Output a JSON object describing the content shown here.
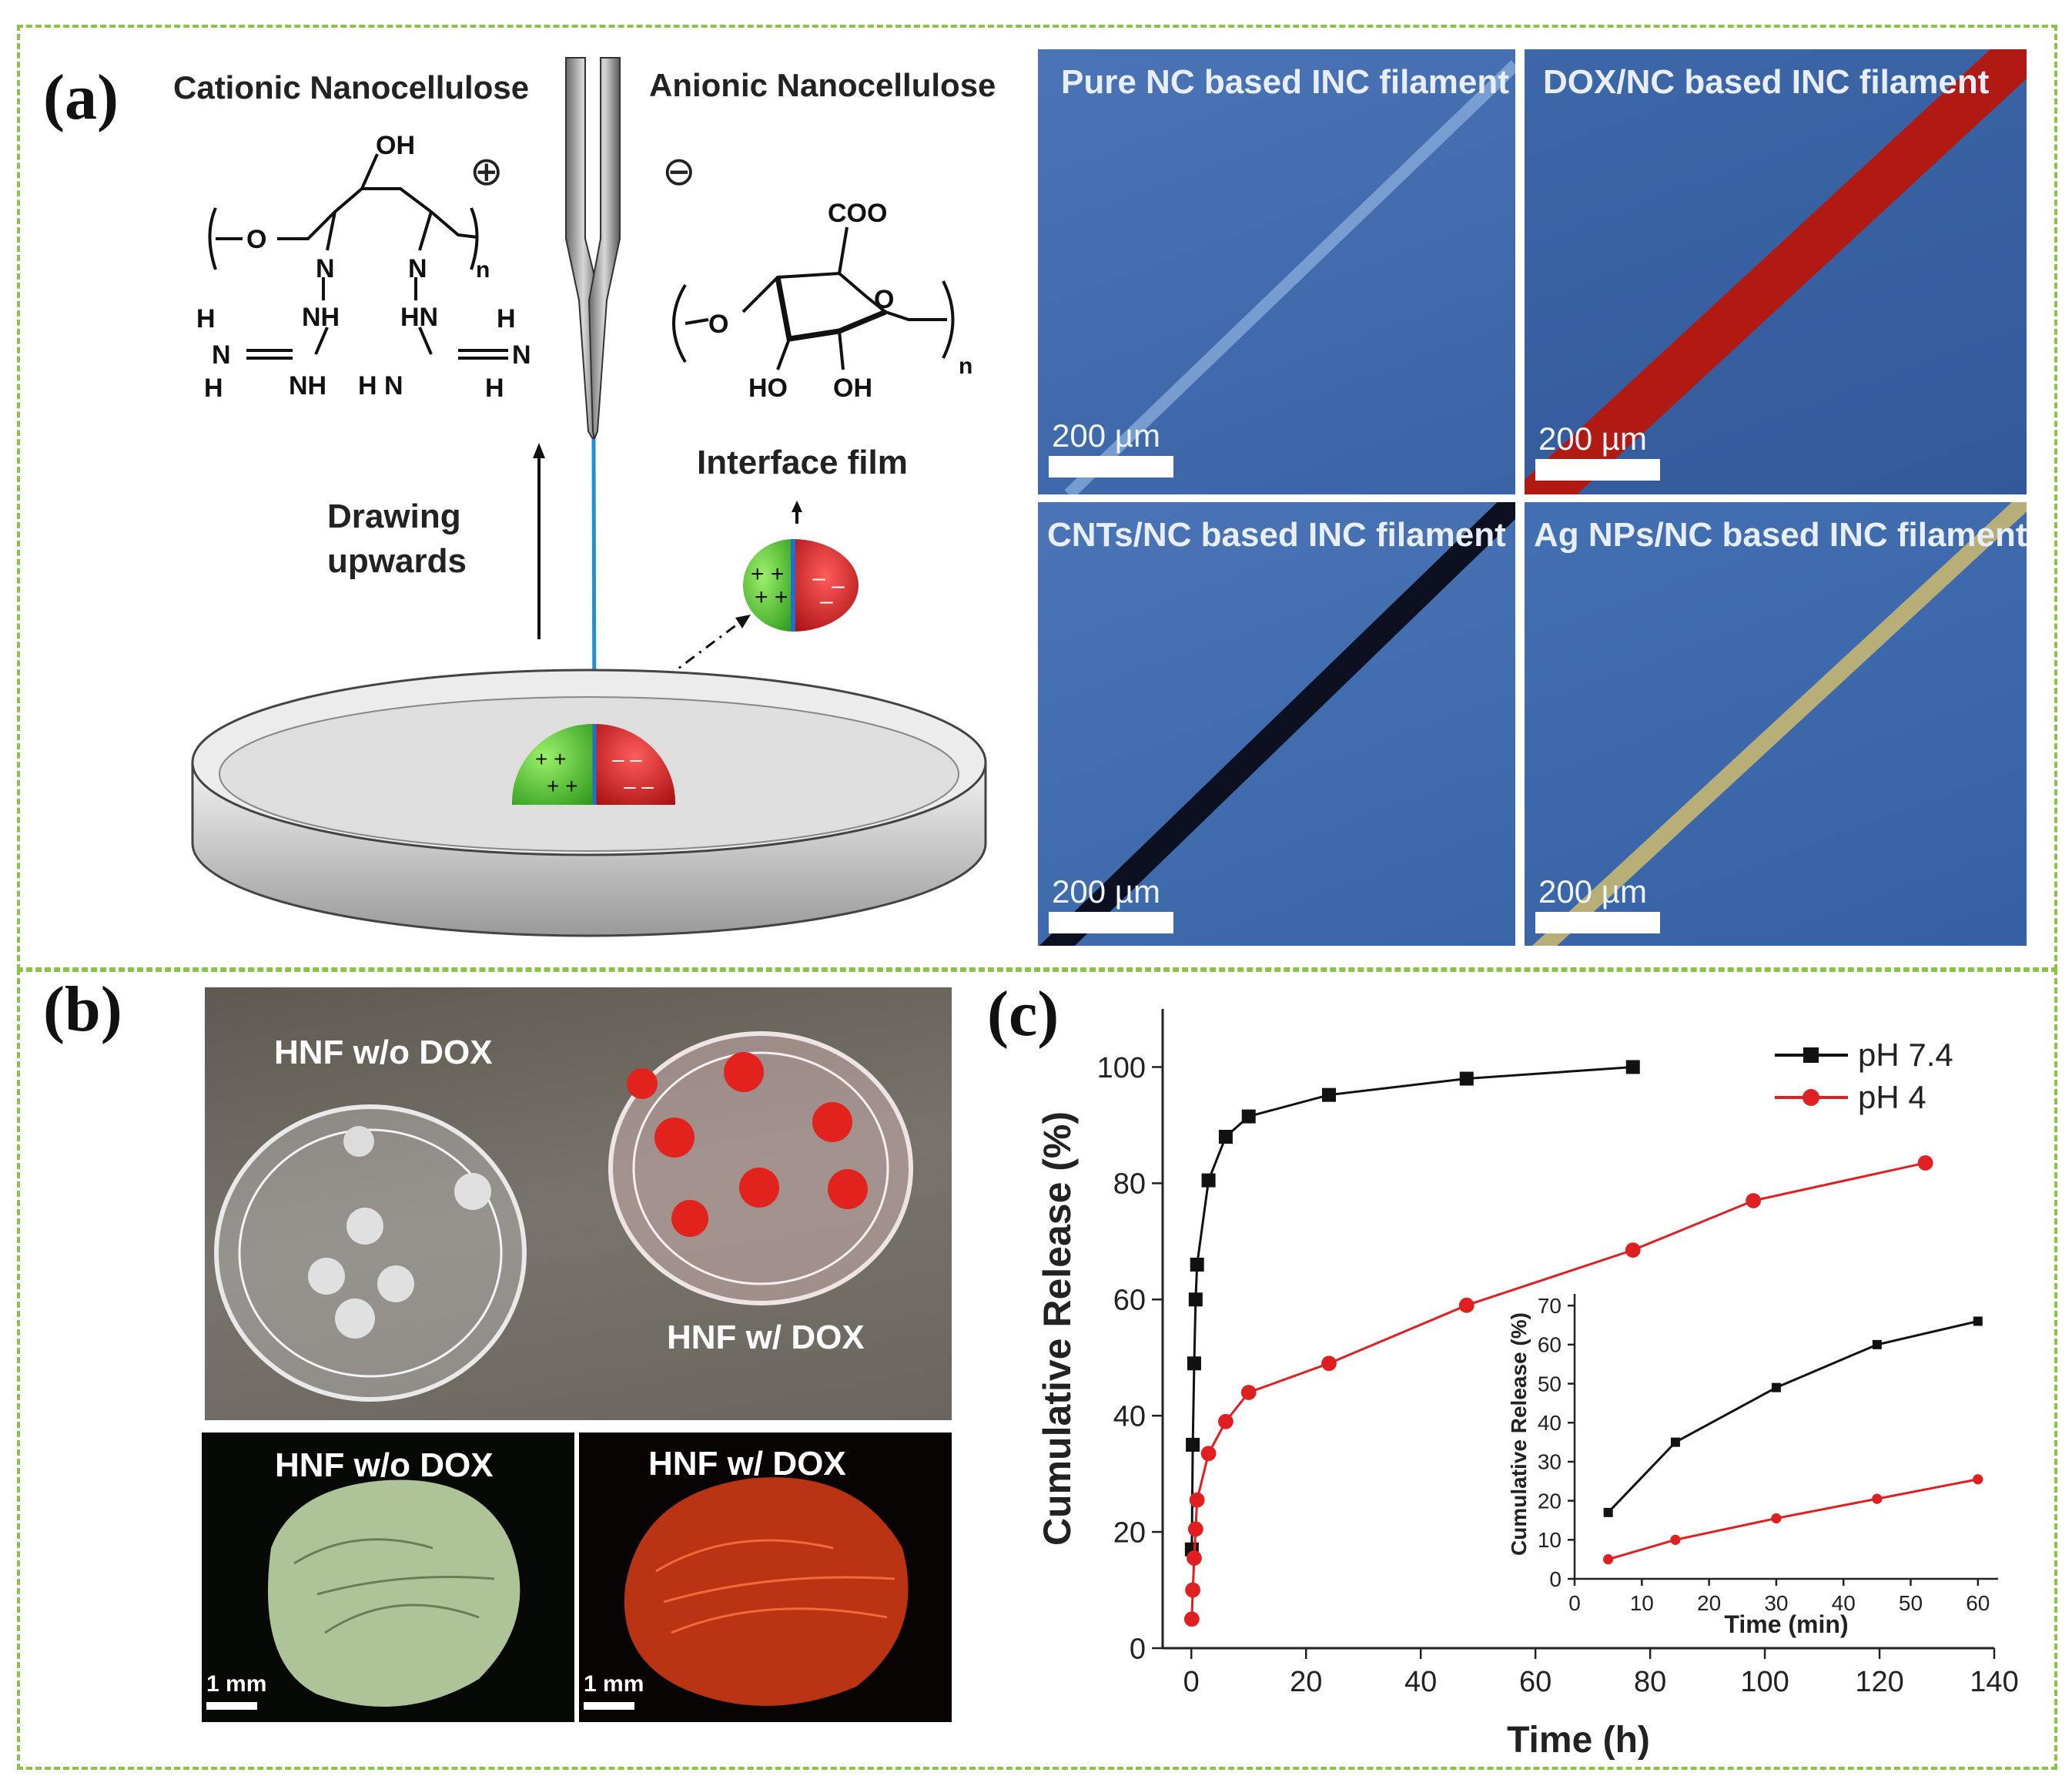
{
  "panel_a": {
    "label": "(a)",
    "cationic_title": "Cationic Nanocellulose",
    "anionic_title": "Anionic Nanocellulose",
    "drawing_line1": "Drawing",
    "drawing_line2": "upwards",
    "interface_film": "Interface film",
    "chem": {
      "oh": "OH",
      "coo": "COO",
      "ho": "HO",
      "n": "n",
      "o": "O",
      "nh": "NH",
      "hn": "HN",
      "nh2": "NH",
      "h2n": "H N",
      "h": "H",
      "n_atom": "N"
    },
    "micrographs": [
      {
        "title": "Pure NC based INC filament",
        "scale": "200 µm"
      },
      {
        "title": "DOX/NC based INC filament",
        "scale": "200 µm"
      },
      {
        "title": "CNTs/NC based INC filament",
        "scale": "200 µm"
      },
      {
        "title": "Ag NPs/NC based INC filament",
        "scale": "200 µm"
      }
    ]
  },
  "panel_b": {
    "label": "(b)",
    "top_left": "HNF w/o DOX",
    "top_right": "HNF w/ DOX",
    "bottom_left": "HNF w/o DOX",
    "bottom_right": "HNF w/ DOX",
    "scale_left": "1 mm",
    "scale_right": "1 mm"
  },
  "panel_c": {
    "label": "(c)"
  },
  "chart_data": [
    {
      "type": "line",
      "xlabel": "Time (h)",
      "ylabel": "Cumulative Release (%)",
      "xlim": [
        -5,
        140
      ],
      "ylim": [
        0,
        110
      ],
      "xticks": [
        0,
        20,
        40,
        60,
        80,
        100,
        120,
        140
      ],
      "yticks": [
        0,
        20,
        40,
        60,
        80,
        100
      ],
      "legend_position": "top-right",
      "series": [
        {
          "name": "pH 7.4",
          "color": "#111111",
          "marker": "square",
          "x": [
            0.08,
            0.25,
            0.5,
            0.75,
            1,
            3,
            6,
            10,
            24,
            48,
            77
          ],
          "y": [
            17,
            35,
            49,
            60,
            66,
            80.5,
            88,
            91.5,
            95.2,
            98,
            100
          ]
        },
        {
          "name": "pH 4",
          "color": "#e02020",
          "marker": "circle",
          "x": [
            0.08,
            0.25,
            0.5,
            0.75,
            1,
            3,
            6,
            10,
            24,
            48,
            77,
            98,
            128
          ],
          "y": [
            5,
            10,
            15.5,
            20.5,
            25.5,
            33.5,
            39,
            44,
            49,
            59,
            68.5,
            77,
            83.5
          ]
        }
      ]
    },
    {
      "type": "line",
      "xlabel": "Time (min)",
      "ylabel": "Cumulative Release (%)",
      "xlim": [
        0,
        63
      ],
      "ylim": [
        0,
        73
      ],
      "xticks": [
        0,
        10,
        20,
        30,
        40,
        50,
        60
      ],
      "yticks": [
        0,
        10,
        20,
        30,
        40,
        50,
        60,
        70
      ],
      "series": [
        {
          "color": "#111111",
          "marker": "square",
          "x": [
            5,
            15,
            30,
            45,
            60
          ],
          "y": [
            17,
            35,
            49,
            60,
            66
          ]
        },
        {
          "color": "#e02020",
          "marker": "circle",
          "x": [
            5,
            15,
            30,
            45,
            60
          ],
          "y": [
            5,
            10,
            15.5,
            20.5,
            25.5
          ]
        }
      ]
    }
  ]
}
